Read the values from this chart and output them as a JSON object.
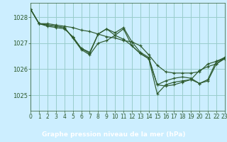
{
  "title": "Graphe pression niveau de la mer (hPa)",
  "bg_color": "#cceeff",
  "plot_bg_color": "#cceeff",
  "bottom_bar_color": "#336633",
  "label_color": "#ffffff",
  "grid_color": "#99cccc",
  "line_color": "#2d5a2d",
  "xlim": [
    0,
    23
  ],
  "ylim": [
    1024.4,
    1028.55
  ],
  "yticks": [
    1025,
    1026,
    1027,
    1028
  ],
  "xticks": [
    0,
    1,
    2,
    3,
    4,
    5,
    6,
    7,
    8,
    9,
    10,
    11,
    12,
    13,
    14,
    15,
    16,
    17,
    18,
    19,
    20,
    21,
    22,
    23
  ],
  "series": [
    [
      1028.3,
      1027.75,
      1027.75,
      1027.7,
      1027.65,
      1027.6,
      1027.5,
      1027.45,
      1027.35,
      1027.25,
      1027.2,
      1027.1,
      1027.05,
      1026.9,
      1026.55,
      1026.15,
      1025.9,
      1025.85,
      1025.85,
      1025.85,
      1025.9,
      1026.2,
      1026.3,
      1026.4
    ],
    [
      1028.3,
      1027.75,
      1027.7,
      1027.65,
      1027.6,
      1027.2,
      1026.75,
      1026.55,
      1027.0,
      1027.1,
      1027.3,
      1027.15,
      1026.9,
      1026.6,
      1026.4,
      1025.4,
      1025.35,
      1025.4,
      1025.5,
      1025.6,
      1025.45,
      1025.55,
      1026.2,
      1026.4
    ],
    [
      1028.3,
      1027.75,
      1027.65,
      1027.6,
      1027.55,
      1027.25,
      1026.8,
      1026.65,
      1027.35,
      1027.55,
      1027.3,
      1027.55,
      1026.9,
      1026.6,
      1026.4,
      1025.05,
      1025.4,
      1025.5,
      1025.55,
      1025.6,
      1025.95,
      1026.1,
      1026.2,
      1026.45
    ],
    [
      1028.3,
      1027.75,
      1027.7,
      1027.65,
      1027.6,
      1027.2,
      1026.8,
      1026.6,
      1027.35,
      1027.55,
      1027.4,
      1027.6,
      1027.05,
      1026.65,
      1026.45,
      1025.4,
      1025.55,
      1025.65,
      1025.7,
      1025.65,
      1025.45,
      1025.6,
      1026.3,
      1026.45
    ]
  ],
  "tick_fontsize": 5.5,
  "title_fontsize": 6.5
}
